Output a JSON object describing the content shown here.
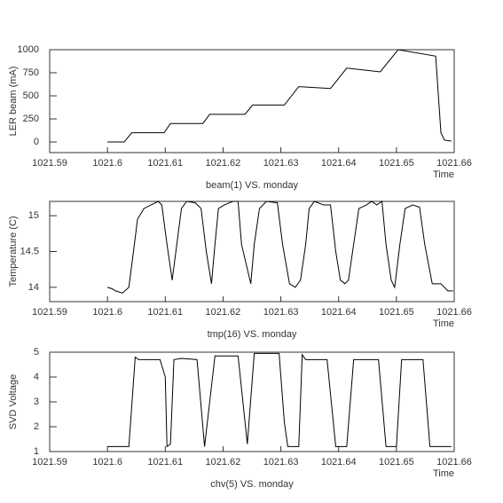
{
  "chart_data": [
    {
      "type": "line",
      "title": "beam(1) VS. monday",
      "x_label": "Time",
      "y_label": "LER beam (mA)",
      "color": "#000000",
      "x": [
        1021.6,
        1021.6029,
        1021.6042,
        1021.6098,
        1021.6109,
        1021.6165,
        1021.6177,
        1021.6238,
        1021.6251,
        1021.6306,
        1021.6331,
        1021.6386,
        1021.6414,
        1021.6472,
        1021.6503,
        1021.6568,
        1021.6577,
        1021.6583,
        1021.6595
      ],
      "values": [
        0,
        0,
        100,
        100,
        200,
        200,
        300,
        300,
        400,
        400,
        600,
        580,
        800,
        760,
        1000,
        930,
        100,
        20,
        10
      ],
      "xlim": [
        1021.59,
        1021.66
      ],
      "xticks": [
        1021.59,
        1021.6,
        1021.61,
        1021.62,
        1021.63,
        1021.64,
        1021.65,
        1021.66
      ],
      "ylim": [
        -115,
        1000
      ],
      "yticks": [
        0,
        250,
        500,
        750,
        1000
      ]
    },
    {
      "type": "line",
      "title": "tmp(16) VS. monday",
      "x_label": "Time",
      "y_label": "Temperature (C)",
      "color": "#000000",
      "x": [
        1021.6,
        1021.6008,
        1021.6014,
        1021.6026,
        1021.6037,
        1021.6045,
        1021.6052,
        1021.6063,
        1021.6075,
        1021.6088,
        1021.6094,
        1021.6103,
        1021.6112,
        1021.612,
        1021.6128,
        1021.6137,
        1021.6152,
        1021.6162,
        1021.6171,
        1021.618,
        1021.6186,
        1021.6192,
        1021.6202,
        1021.6217,
        1021.6226,
        1021.6232,
        1021.6248,
        1021.6254,
        1021.6263,
        1021.6275,
        1021.6294,
        1021.6303,
        1021.6315,
        1021.6325,
        1021.6334,
        1021.6343,
        1021.6349,
        1021.6358,
        1021.6374,
        1021.6386,
        1021.6395,
        1021.6403,
        1021.6411,
        1021.6417,
        1021.6426,
        1021.6435,
        1021.6448,
        1021.6457,
        1021.6466,
        1021.6475,
        1021.6482,
        1021.6491,
        1021.6497,
        1021.6506,
        1021.6515,
        1021.6528,
        1021.654,
        1021.6549,
        1021.6562,
        1021.6577,
        1021.6589,
        1021.6598
      ],
      "values": [
        14.0,
        13.98,
        13.95,
        13.92,
        14.0,
        14.5,
        14.95,
        15.1,
        15.15,
        15.2,
        15.15,
        14.6,
        14.1,
        14.6,
        15.1,
        15.2,
        15.18,
        15.1,
        14.5,
        14.05,
        14.6,
        15.1,
        15.15,
        15.2,
        15.2,
        14.6,
        14.05,
        14.6,
        15.1,
        15.2,
        15.18,
        14.6,
        14.05,
        14.0,
        14.1,
        14.6,
        15.1,
        15.2,
        15.15,
        15.15,
        14.5,
        14.1,
        14.05,
        14.1,
        14.6,
        15.1,
        15.15,
        15.2,
        15.15,
        15.2,
        14.6,
        14.1,
        14.0,
        14.6,
        15.1,
        15.15,
        15.12,
        14.6,
        14.05,
        14.05,
        13.95,
        13.95
      ],
      "xlim": [
        1021.59,
        1021.66
      ],
      "xticks": [
        1021.59,
        1021.6,
        1021.61,
        1021.62,
        1021.63,
        1021.64,
        1021.65,
        1021.66
      ],
      "ylim": [
        13.8,
        15.2
      ],
      "yticks": [
        14,
        14.5,
        15
      ]
    },
    {
      "type": "line",
      "title": "chv(5) VS. monday",
      "x_label": "Time",
      "y_label": "SVD Voltage",
      "color": "#000000",
      "x": [
        1021.6,
        1021.6037,
        1021.6048,
        1021.6054,
        1021.6091,
        1021.61,
        1021.6103,
        1021.6109,
        1021.6115,
        1021.6128,
        1021.6155,
        1021.6168,
        1021.6186,
        1021.6226,
        1021.6242,
        1021.6254,
        1021.6297,
        1021.6306,
        1021.6312,
        1021.6331,
        1021.6337,
        1021.6343,
        1021.638,
        1021.6395,
        1021.6414,
        1021.6426,
        1021.6469,
        1021.6482,
        1021.65,
        1021.6509,
        1021.6546,
        1021.6558,
        1021.6595
      ],
      "values": [
        1.2,
        1.2,
        4.8,
        4.7,
        4.7,
        4.0,
        1.2,
        1.3,
        4.7,
        4.75,
        4.7,
        1.2,
        4.85,
        4.85,
        1.3,
        4.95,
        4.95,
        2.2,
        1.2,
        1.2,
        4.9,
        4.7,
        4.7,
        1.2,
        1.2,
        4.7,
        4.7,
        1.2,
        1.2,
        4.7,
        4.7,
        1.2,
        1.2
      ],
      "xlim": [
        1021.59,
        1021.66
      ],
      "xticks": [
        1021.59,
        1021.6,
        1021.61,
        1021.62,
        1021.63,
        1021.64,
        1021.65,
        1021.66
      ],
      "ylim": [
        1,
        5
      ],
      "yticks": [
        1,
        2,
        3,
        4,
        5
      ]
    }
  ]
}
